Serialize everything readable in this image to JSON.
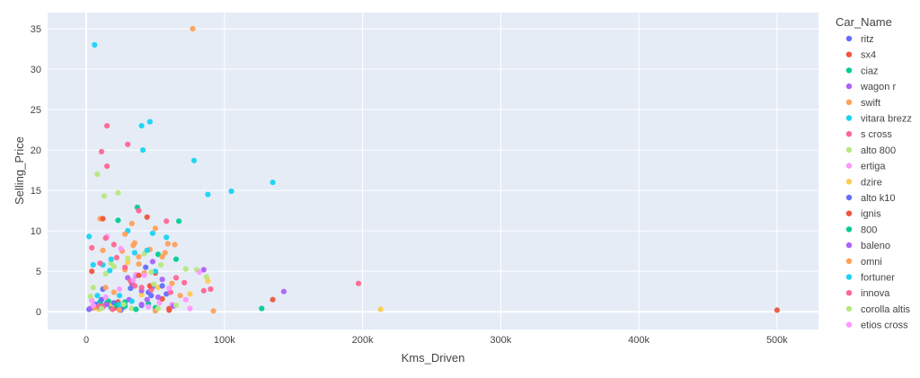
{
  "chart_data": {
    "type": "scatter",
    "title": "",
    "xlabel": "Kms_Driven",
    "ylabel": "Selling_Price",
    "xlim": [
      -28000,
      530000
    ],
    "ylim": [
      -2.2,
      37
    ],
    "grid": true,
    "legend_title": "Car_Name",
    "legend_position": "right",
    "x_ticks": [
      0,
      100000,
      200000,
      300000,
      400000,
      500000
    ],
    "x_tick_labels": [
      "0",
      "100k",
      "200k",
      "300k",
      "400k",
      "500k"
    ],
    "y_ticks": [
      0,
      5,
      10,
      15,
      20,
      25,
      30,
      35
    ],
    "y_tick_labels": [
      "0",
      "5",
      "10",
      "15",
      "20",
      "25",
      "30",
      "35"
    ],
    "series": [
      {
        "name": "ritz",
        "color": "#636efa",
        "points": [
          [
            5000,
            0.5
          ],
          [
            12000,
            2.8
          ],
          [
            27000,
            0.6
          ],
          [
            36000,
            4.5
          ],
          [
            45000,
            2.4
          ],
          [
            48000,
            3.1
          ],
          [
            58000,
            2.2
          ],
          [
            15000,
            1.1
          ],
          [
            40000,
            0.8
          ]
        ]
      },
      {
        "name": "sx4",
        "color": "#ef553b",
        "points": [
          [
            500000,
            0.2
          ],
          [
            135000,
            1.5
          ],
          [
            44000,
            11.7
          ],
          [
            23000,
            1.2
          ],
          [
            33000,
            3.5
          ],
          [
            50000,
            4.8
          ],
          [
            60000,
            0.4
          ]
        ]
      },
      {
        "name": "ciaz",
        "color": "#00cc96",
        "points": [
          [
            127000,
            0.4
          ],
          [
            67000,
            11.2
          ],
          [
            37000,
            12.9
          ],
          [
            23000,
            11.3
          ],
          [
            15000,
            1.1
          ],
          [
            6000,
            0.9
          ],
          [
            10000,
            1.2
          ],
          [
            18000,
            0.5
          ],
          [
            28000,
            0.7
          ],
          [
            45000,
            1.0
          ],
          [
            52000,
            7.1
          ]
        ]
      },
      {
        "name": "wagon r",
        "color": "#ab63fa",
        "points": [
          [
            143000,
            2.5
          ],
          [
            85000,
            5.2
          ],
          [
            30000,
            4.2
          ],
          [
            33000,
            3.6
          ],
          [
            40000,
            0.9
          ],
          [
            44000,
            1.5
          ],
          [
            55000,
            4.0
          ],
          [
            19000,
            0.4
          ],
          [
            12000,
            0.6
          ]
        ]
      },
      {
        "name": "swift",
        "color": "#ffa15a",
        "points": [
          [
            77000,
            35.0
          ],
          [
            92000,
            0.1
          ],
          [
            33000,
            10.9
          ],
          [
            50000,
            10.3
          ],
          [
            10000,
            11.5
          ],
          [
            26000,
            7.5
          ],
          [
            34000,
            8.2
          ],
          [
            42000,
            4.8
          ],
          [
            55000,
            6.8
          ],
          [
            62000,
            3.5
          ],
          [
            68000,
            2.0
          ],
          [
            14000,
            3.0
          ],
          [
            20000,
            2.4
          ],
          [
            28000,
            5.2
          ],
          [
            38000,
            5.9
          ],
          [
            46000,
            7.7
          ],
          [
            59000,
            8.4
          ]
        ]
      },
      {
        "name": "vitara brezz",
        "color": "#19d3f3",
        "points": [
          [
            6000,
            33.0
          ],
          [
            40000,
            23.0
          ],
          [
            46000,
            23.5
          ],
          [
            41000,
            20.0
          ],
          [
            78000,
            18.7
          ],
          [
            88000,
            14.5
          ],
          [
            105000,
            14.9
          ],
          [
            135000,
            16.0
          ],
          [
            2000,
            9.3
          ],
          [
            30000,
            10.0
          ],
          [
            48000,
            9.7
          ],
          [
            12000,
            5.8
          ],
          [
            17000,
            5.1
          ],
          [
            24000,
            2.0
          ],
          [
            35000,
            7.3
          ],
          [
            58000,
            9.2
          ],
          [
            8000,
            0.9
          ]
        ]
      },
      {
        "name": "s cross",
        "color": "#ff6692",
        "points": [
          [
            15000,
            23.0
          ],
          [
            30000,
            20.7
          ],
          [
            11000,
            19.8
          ],
          [
            15000,
            18.0
          ],
          [
            38000,
            12.5
          ],
          [
            58000,
            11.2
          ],
          [
            197000,
            3.5
          ],
          [
            4000,
            7.9
          ],
          [
            10000,
            6.0
          ],
          [
            20000,
            8.3
          ],
          [
            28000,
            5.5
          ],
          [
            35000,
            3.2
          ],
          [
            47000,
            2.7
          ],
          [
            65000,
            4.2
          ],
          [
            90000,
            2.8
          ],
          [
            13000,
            0.8
          ]
        ]
      },
      {
        "name": "alto 800",
        "color": "#b6e880",
        "points": [
          [
            8000,
            17.0
          ],
          [
            13000,
            14.3
          ],
          [
            23000,
            14.7
          ],
          [
            5000,
            3.0
          ],
          [
            14000,
            4.7
          ],
          [
            18000,
            6.0
          ],
          [
            30000,
            6.6
          ],
          [
            42000,
            7.2
          ],
          [
            54000,
            5.8
          ],
          [
            72000,
            5.3
          ],
          [
            80000,
            5.2
          ],
          [
            87000,
            4.3
          ],
          [
            21000,
            0.7
          ],
          [
            33000,
            0.4
          ]
        ]
      },
      {
        "name": "ertiga",
        "color": "#ff97ff",
        "points": [
          [
            75000,
            0.4
          ],
          [
            82000,
            4.9
          ],
          [
            15000,
            9.3
          ],
          [
            25000,
            7.8
          ],
          [
            36000,
            4.6
          ],
          [
            4000,
            1.4
          ],
          [
            45000,
            0.6
          ],
          [
            53000,
            1.1
          ],
          [
            62000,
            0.9
          ]
        ]
      },
      {
        "name": "dzire",
        "color": "#fecb52",
        "points": [
          [
            213000,
            0.3
          ],
          [
            75000,
            2.2
          ],
          [
            88000,
            3.8
          ],
          [
            52000,
            3.0
          ],
          [
            30000,
            6.1
          ],
          [
            18000,
            1.0
          ],
          [
            40000,
            2.1
          ],
          [
            9000,
            0.3
          ]
        ]
      },
      {
        "name": "alto k10",
        "color": "#636efa",
        "points": [
          [
            2000,
            0.3
          ],
          [
            7000,
            0.9
          ],
          [
            20000,
            1.1
          ],
          [
            32000,
            2.9
          ],
          [
            43000,
            5.5
          ],
          [
            47000,
            2.0
          ],
          [
            55000,
            3.2
          ],
          [
            25000,
            0.2
          ],
          [
            11000,
            1.5
          ]
        ]
      },
      {
        "name": "ignis",
        "color": "#ef553b",
        "points": [
          [
            12000,
            11.5
          ],
          [
            38000,
            4.5
          ],
          [
            46000,
            3.2
          ],
          [
            55000,
            1.6
          ],
          [
            60000,
            0.2
          ],
          [
            22000,
            0.5
          ],
          [
            4000,
            5.0
          ]
        ]
      },
      {
        "name": "800",
        "color": "#00cc96",
        "points": [
          [
            65000,
            6.5
          ],
          [
            16000,
            1.3
          ],
          [
            22000,
            0.8
          ],
          [
            9000,
            0.6
          ],
          [
            36000,
            0.3
          ],
          [
            50000,
            0.5
          ],
          [
            28000,
            1.2
          ]
        ]
      },
      {
        "name": "baleno",
        "color": "#ab63fa",
        "points": [
          [
            48000,
            6.2
          ],
          [
            40000,
            2.6
          ],
          [
            31000,
            1.5
          ],
          [
            15000,
            0.9
          ],
          [
            3000,
            0.4
          ],
          [
            52000,
            1.8
          ],
          [
            63000,
            0.7
          ]
        ]
      },
      {
        "name": "omni",
        "color": "#ffa15a",
        "points": [
          [
            28000,
            9.6
          ],
          [
            35000,
            8.5
          ],
          [
            57000,
            7.3
          ],
          [
            64000,
            8.3
          ],
          [
            12000,
            7.6
          ],
          [
            38000,
            6.8
          ],
          [
            6000,
            0.5
          ],
          [
            24000,
            0.2
          ],
          [
            50000,
            0.1
          ]
        ]
      },
      {
        "name": "fortuner",
        "color": "#19d3f3",
        "points": [
          [
            5000,
            5.8
          ],
          [
            18000,
            6.5
          ],
          [
            44000,
            7.6
          ],
          [
            50000,
            5.0
          ],
          [
            24000,
            0.9
          ],
          [
            33000,
            1.3
          ],
          [
            8000,
            2.0
          ]
        ]
      },
      {
        "name": "innova",
        "color": "#ff6692",
        "points": [
          [
            22000,
            6.7
          ],
          [
            32000,
            3.8
          ],
          [
            40000,
            3.0
          ],
          [
            61000,
            2.4
          ],
          [
            71000,
            3.6
          ],
          [
            85000,
            2.6
          ],
          [
            14000,
            9.1
          ],
          [
            9000,
            0.7
          ],
          [
            19000,
            0.3
          ]
        ]
      },
      {
        "name": "corolla altis",
        "color": "#b6e880",
        "points": [
          [
            47000,
            4.9
          ],
          [
            49000,
            3.4
          ],
          [
            52000,
            0.4
          ],
          [
            65000,
            0.8
          ],
          [
            3000,
            1.9
          ],
          [
            20000,
            5.6
          ],
          [
            27000,
            0.9
          ],
          [
            11000,
            0.4
          ]
        ]
      },
      {
        "name": "etios cross",
        "color": "#ff97ff",
        "points": [
          [
            34000,
            3.9
          ],
          [
            42000,
            4.5
          ],
          [
            24000,
            2.8
          ],
          [
            14000,
            1.8
          ],
          [
            5000,
            0.8
          ],
          [
            60000,
            2.9
          ],
          [
            72000,
            1.5
          ]
        ]
      }
    ]
  }
}
